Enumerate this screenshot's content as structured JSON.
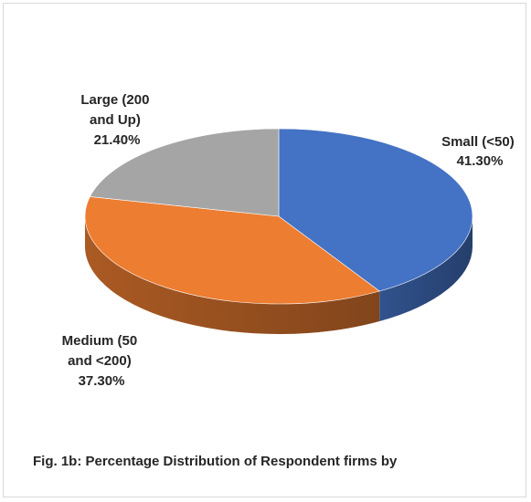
{
  "chart_data": {
    "type": "pie",
    "style": "3d",
    "categories": [
      "Small (<50)",
      "Medium (50 and <200)",
      "Large (200 and Up)"
    ],
    "values": [
      41.3,
      37.3,
      21.4
    ],
    "unit": "%",
    "slices": [
      {
        "name": "Small (<50)",
        "value": 41.3,
        "color": "#4472c4",
        "label_lines": [
          "Small (<50)",
          "41.30%"
        ]
      },
      {
        "name": "Medium (50 and <200)",
        "value": 37.3,
        "color": "#ed7d31",
        "label_lines": [
          "Medium (50",
          "and <200)",
          "37.30%"
        ]
      },
      {
        "name": "Large (200 and Up)",
        "value": 21.4,
        "color": "#a5a5a5",
        "label_lines": [
          "Large (200",
          "and Up)",
          "21.40%"
        ]
      }
    ],
    "legend": "none",
    "grid": false
  },
  "caption": "Fig. 1b: Percentage Distribution of Respondent firms by"
}
